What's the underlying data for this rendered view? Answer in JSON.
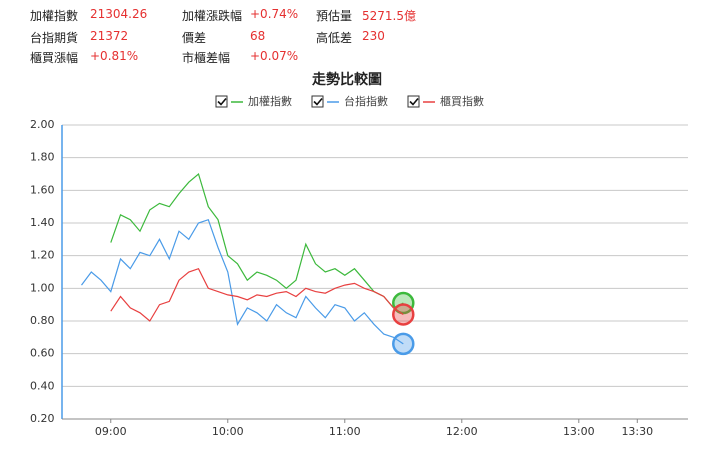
{
  "info": [
    [
      {
        "label": "加權指數",
        "value": "21304.26"
      },
      {
        "label": "加權漲跌幅",
        "value": "+0.74%"
      },
      {
        "label": "預估量",
        "value": "5271.5億"
      }
    ],
    [
      {
        "label": "台指期貨",
        "value": "21372"
      },
      {
        "label": "價差",
        "value": "68"
      },
      {
        "label": "高低差",
        "value": "230"
      }
    ],
    [
      {
        "label": "櫃買漲幅",
        "value": "+0.81%"
      },
      {
        "label": "市櫃差幅",
        "value": "+0.07%"
      }
    ]
  ],
  "chart_data": {
    "type": "line",
    "title": "走勢比較圖",
    "x": [
      "08:45",
      "08:50",
      "08:55",
      "09:00",
      "09:05",
      "09:10",
      "09:15",
      "09:20",
      "09:25",
      "09:30",
      "09:35",
      "09:40",
      "09:45",
      "09:50",
      "09:55",
      "10:00",
      "10:05",
      "10:10",
      "10:15",
      "10:20",
      "10:25",
      "10:30",
      "10:35",
      "10:40",
      "10:45",
      "10:50",
      "10:55",
      "11:00",
      "11:05",
      "11:10",
      "11:15",
      "11:20",
      "11:25",
      "11:30"
    ],
    "series": [
      {
        "name": "加權指數",
        "color": "#3cb93c",
        "values": [
          null,
          null,
          null,
          1.28,
          1.45,
          1.42,
          1.35,
          1.48,
          1.52,
          1.5,
          1.58,
          1.65,
          1.7,
          1.5,
          1.42,
          1.2,
          1.15,
          1.05,
          1.1,
          1.08,
          1.05,
          1.0,
          1.05,
          1.27,
          1.15,
          1.1,
          1.12,
          1.08,
          1.12,
          1.05,
          0.98,
          0.95,
          0.88,
          0.91
        ]
      },
      {
        "name": "台指指數",
        "color": "#4a9be8",
        "values": [
          1.02,
          1.1,
          1.05,
          0.98,
          1.18,
          1.12,
          1.22,
          1.2,
          1.3,
          1.18,
          1.35,
          1.3,
          1.4,
          1.42,
          1.25,
          1.1,
          0.78,
          0.88,
          0.85,
          0.8,
          0.9,
          0.85,
          0.82,
          0.95,
          0.88,
          0.82,
          0.9,
          0.88,
          0.8,
          0.85,
          0.78,
          0.72,
          0.7,
          0.66
        ]
      },
      {
        "name": "櫃買指數",
        "color": "#e84040",
        "values": [
          null,
          null,
          null,
          0.86,
          0.95,
          0.88,
          0.85,
          0.8,
          0.9,
          0.92,
          1.05,
          1.1,
          1.12,
          1.0,
          0.98,
          0.96,
          0.95,
          0.93,
          0.96,
          0.95,
          0.97,
          0.98,
          0.95,
          1.0,
          0.98,
          0.97,
          1.0,
          1.02,
          1.03,
          1.0,
          0.98,
          0.95,
          0.88,
          0.84
        ]
      }
    ],
    "xlim": [
      "08:35",
      "13:56"
    ],
    "xticks": [
      "09:00",
      "10:00",
      "11:00",
      "12:00",
      "13:00",
      "13:30"
    ],
    "ylim": [
      0.2,
      2.0
    ],
    "yticks": [
      {
        "value": 0.2,
        "label": "0.20"
      },
      {
        "value": 0.4,
        "label": "0.40"
      },
      {
        "value": 0.6,
        "label": "0.60"
      },
      {
        "value": 0.8,
        "label": "0.80"
      },
      {
        "value": 1.0,
        "label": "1.00"
      },
      {
        "value": 1.2,
        "label": "1.20"
      },
      {
        "value": 1.4,
        "label": "1.40"
      },
      {
        "value": 1.6,
        "label": "1.60"
      },
      {
        "value": 1.8,
        "label": "1.80"
      },
      {
        "value": 2.0,
        "label": "2.00"
      }
    ],
    "grid": true
  }
}
